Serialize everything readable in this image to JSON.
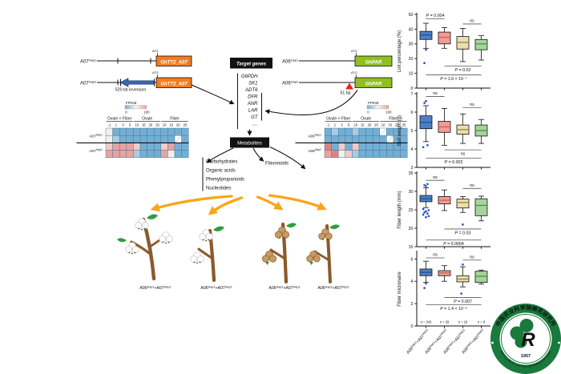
{
  "genes": {
    "a07_label": "A07",
    "a06_label": "A06",
    "hap1": "Hap1",
    "hap2": "Hap2",
    "tt2": "GhTT2_A07",
    "par": "GhPAR",
    "atg": "ATG",
    "inversion": "520 kb inversion",
    "insertion": "51 bp",
    "orange_box_color": "#F47D20",
    "green_box_color": "#8FBF21",
    "inversion_arrow_color": "#3A66AE",
    "insertion_marker_color": "#E8231A"
  },
  "target": {
    "title": "Target genes",
    "list": [
      "G6PDH",
      "SK1",
      "ADT6",
      "DFR",
      "ANR",
      "LAR",
      "GT",
      "...."
    ]
  },
  "metabolites": {
    "title": "Metabolites",
    "green_items": [
      "Carbohydrates",
      "Organic acids",
      "Phenylpropanoids"
    ],
    "red_items": [
      "Nucleotides"
    ],
    "flavonoids": "Flavonoids",
    "green_color": "#169E49",
    "red_color": "#E8231A"
  },
  "heatmap": {
    "legend_label": "FPKM",
    "legend_min": "0",
    "legend_max": "100",
    "groups": [
      "Ovule + Fiber",
      "Ovule",
      "Fiber"
    ],
    "group_spans": [
      [
        0,
        4
      ],
      [
        4,
        8
      ],
      [
        8,
        12
      ]
    ],
    "cols": [
      "-1",
      "1",
      "3",
      "5",
      "10",
      "15",
      "20",
      "25",
      "10",
      "15",
      "20",
      "25"
    ],
    "palette": {
      "b": "#73AFD4",
      "lb": "#A8CCE3",
      "w": "#F3F0EB",
      "lp": "#F1CBC7",
      "p": "#E9A29E",
      "r": "#DF827E",
      "na": "#FFFFFF"
    },
    "left": {
      "row_base": "A07",
      "rows": [
        [
          "w",
          "b",
          "b",
          "b",
          "b",
          "b",
          "b",
          "b",
          "b",
          "b",
          "b",
          "b"
        ],
        [
          "w",
          "lb",
          "b",
          "b",
          "b",
          "b",
          "b",
          "b",
          "b",
          "b",
          "na",
          "b"
        ],
        [
          "lp",
          "p",
          "p",
          "p",
          "lp",
          "b",
          "b",
          "b",
          "lp",
          "p",
          "b",
          "b"
        ],
        [
          "p",
          "p",
          "p",
          "p",
          "lb",
          "b",
          "b",
          "b",
          "p",
          "w",
          "b",
          "b"
        ]
      ]
    },
    "right": {
      "row_base": "A06",
      "rows": [
        [
          "b",
          "lb",
          "b",
          "b",
          "lb",
          "b",
          "b",
          "b",
          "na",
          "b",
          "b",
          "b"
        ],
        [
          "b",
          "b",
          "b",
          "b",
          "b",
          "b",
          "b",
          "b",
          "b",
          "na",
          "b",
          "b"
        ],
        [
          "r",
          "b",
          "lp",
          "b",
          "lp",
          "b",
          "b",
          "b",
          "b",
          "b",
          "b",
          "b"
        ],
        [
          "p",
          "r",
          "w",
          "lp",
          "lb",
          "b",
          "b",
          "b",
          "b",
          "b",
          "b",
          "b"
        ]
      ]
    }
  },
  "plants": {
    "arrow_color": "#F9A51A"
  },
  "chart_data": {
    "type": "box",
    "categories": [
      {
        "g1": "A06",
        "h1": "Hap1",
        "g2": "+A07",
        "h2": "Hap1"
      },
      {
        "g1": "A06",
        "h1": "Hap1",
        "g2": "+A07",
        "h2": "Hap2"
      },
      {
        "g1": "A06",
        "h1": "Hap2",
        "g2": "+A07",
        "h2": "Hap1"
      },
      {
        "g1": "A06",
        "h1": "Hap2",
        "g2": "+A07",
        "h2": "Hap2"
      }
    ],
    "box_colors": [
      "#4E80C1",
      "#F39B94",
      "#EBDFAD",
      "#A6D49C"
    ],
    "median_colors": [
      "#1F4E9C",
      "#C4655C",
      "#97834A",
      "#4F8F4C"
    ],
    "outlier_color": "#2B53C0",
    "counts": [
      "n = 343",
      "n = 29",
      "n = 18",
      "n = 6"
    ],
    "panels": [
      {
        "ylabel": "Lint percentage (%)",
        "ylim": [
          0,
          50
        ],
        "yticks": [
          0,
          10,
          20,
          30,
          40,
          50
        ],
        "boxes": [
          {
            "lo": 27,
            "q1": 33,
            "med": 36,
            "q3": 38.5,
            "hi": 44,
            "outliers": [
              26,
              17
            ]
          },
          {
            "lo": 27,
            "q1": 30,
            "med": 34.5,
            "q3": 38,
            "hi": 41,
            "outliers": []
          },
          {
            "lo": 18,
            "q1": 26.5,
            "med": 31,
            "q3": 35,
            "hi": 40.5,
            "outliers": []
          },
          {
            "lo": 19,
            "q1": 26,
            "med": 30,
            "q3": 33,
            "hi": 35.5,
            "outliers": []
          }
        ],
        "sigs": [
          {
            "a": 0,
            "b": 1,
            "y": 47,
            "side": "top",
            "label": "P = 0.004"
          },
          {
            "a": 2,
            "b": 3,
            "y": 43.5,
            "side": "top",
            "label": "ns"
          },
          {
            "a": 1,
            "b": 3,
            "y": 15,
            "side": "below",
            "label": "P = 0.02"
          },
          {
            "a": 0,
            "b": 3,
            "y": 9,
            "side": "below",
            "label": "P = 1.6 × 10⁻⁷"
          }
        ]
      },
      {
        "ylabel": "Boll weight (g)",
        "ylim": [
          3,
          7
        ],
        "yticks": [
          3,
          4,
          5,
          6,
          7
        ],
        "boxes": [
          {
            "lo": 4.4,
            "q1": 5.1,
            "med": 5.45,
            "q3": 5.8,
            "hi": 6.35,
            "outliers": [
              6.6,
              6.5,
              4.2,
              4.1
            ]
          },
          {
            "lo": 4.2,
            "q1": 4.9,
            "med": 5.2,
            "q3": 5.5,
            "hi": 6.2,
            "outliers": []
          },
          {
            "lo": 4.3,
            "q1": 4.8,
            "med": 5.05,
            "q3": 5.3,
            "hi": 5.9,
            "outliers": []
          },
          {
            "lo": 4.3,
            "q1": 4.7,
            "med": 5.0,
            "q3": 5.3,
            "hi": 5.6,
            "outliers": []
          }
        ],
        "sigs": [
          {
            "a": 0,
            "b": 1,
            "y": 6.85,
            "side": "top",
            "label": "ns"
          },
          {
            "a": 2,
            "b": 3,
            "y": 6.25,
            "side": "top",
            "label": "ns"
          },
          {
            "a": 1,
            "b": 3,
            "y": 3.95,
            "side": "below",
            "label": "ns"
          },
          {
            "a": 0,
            "b": 3,
            "y": 3.5,
            "side": "below",
            "label": "P = 0.002"
          }
        ]
      },
      {
        "ylabel": "Fiber length (mm)",
        "ylim": [
          15,
          35
        ],
        "yticks": [
          15,
          20,
          25,
          30,
          35
        ],
        "boxes": [
          {
            "lo": 25.6,
            "q1": 27.2,
            "med": 28,
            "q3": 28.9,
            "hi": 31,
            "outliers": [
              31.4,
              31.7,
              32,
              25.2,
              24.9,
              24.6,
              24.3,
              24,
              23.7,
              23.3,
              23
            ]
          },
          {
            "lo": 24.8,
            "q1": 26.6,
            "med": 27.6,
            "q3": 28.6,
            "hi": 30.4,
            "outliers": []
          },
          {
            "lo": 24.3,
            "q1": 25.5,
            "med": 27,
            "q3": 27.9,
            "hi": 28.6,
            "outliers": [
              21
            ]
          },
          {
            "lo": 22,
            "q1": 23.4,
            "med": 26.2,
            "q3": 28,
            "hi": 28.7,
            "outliers": []
          }
        ],
        "sigs": [
          {
            "a": 0,
            "b": 1,
            "y": 33,
            "side": "top",
            "label": "ns"
          },
          {
            "a": 2,
            "b": 3,
            "y": 30.8,
            "side": "top",
            "label": "ns"
          },
          {
            "a": 1,
            "b": 3,
            "y": 19.8,
            "side": "below",
            "label": "P = 0.03"
          },
          {
            "a": 0,
            "b": 3,
            "y": 16.8,
            "side": "below",
            "label": "P = 0.0004"
          }
        ]
      },
      {
        "ylabel": "Fiber micronaire",
        "ylim": [
          0,
          6.6
        ],
        "yticks": [
          0,
          2,
          4,
          6
        ],
        "boxes": [
          {
            "lo": 3.9,
            "q1": 4.5,
            "med": 4.8,
            "q3": 5.1,
            "hi": 5.8,
            "outliers": [
              3.8,
              3.4
            ]
          },
          {
            "lo": 4.0,
            "q1": 4.5,
            "med": 4.75,
            "q3": 4.95,
            "hi": 5.4,
            "outliers": []
          },
          {
            "lo": 3.5,
            "q1": 3.95,
            "med": 4.2,
            "q3": 4.5,
            "hi": 5.3,
            "outliers": [
              5.5,
              2.9
            ]
          },
          {
            "lo": 3.75,
            "q1": 3.9,
            "med": 4.45,
            "q3": 4.9,
            "hi": 5.0,
            "outliers": []
          }
        ],
        "sigs": [
          {
            "a": 0,
            "b": 1,
            "y": 6.1,
            "side": "top",
            "label": "ns"
          },
          {
            "a": 2,
            "b": 3,
            "y": 5.9,
            "side": "top",
            "label": "ns"
          },
          {
            "a": 1,
            "b": 3,
            "y": 2.55,
            "side": "below",
            "label": "P = 0.007"
          },
          {
            "a": 0,
            "b": 3,
            "y": 1.9,
            "side": "below",
            "label": "P = 1.4 × 10⁻⁶"
          }
        ]
      }
    ]
  },
  "logo": {
    "cn": "中国农业科学院棉花研究所",
    "en": "INSTITUTE OF COTTON RESEARCH OF CAAS",
    "year": "1957",
    "color": "#187A3C"
  }
}
